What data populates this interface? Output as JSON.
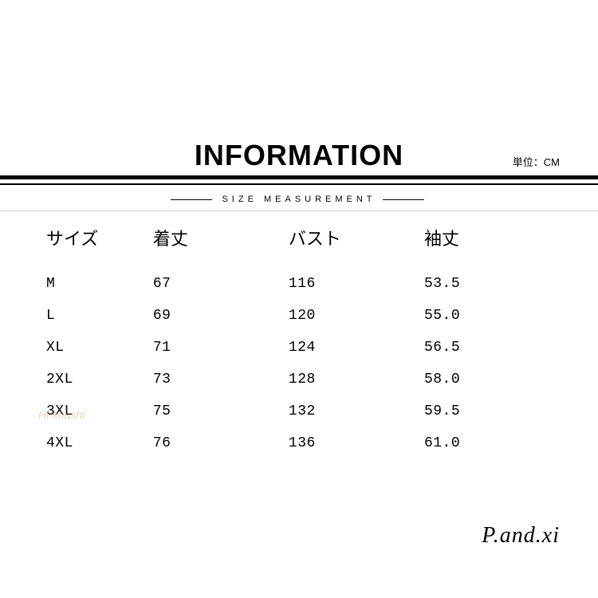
{
  "header": {
    "title": "INFORMATION",
    "unit_label": "単位：CM",
    "subtitle": "SIZE MEASUREMENT"
  },
  "table": {
    "columns": [
      "サイズ",
      "着丈",
      "バスト",
      "袖丈"
    ],
    "rows": [
      [
        "M",
        "67",
        "116",
        "53.5"
      ],
      [
        "L",
        "69",
        "120",
        "55.0"
      ],
      [
        "XL",
        "71",
        "124",
        "56.5"
      ],
      [
        "2XL",
        "73",
        "128",
        "58.0"
      ],
      [
        "3XL",
        "75",
        "132",
        "59.5"
      ],
      [
        "4XL",
        "76",
        "136",
        "61.0"
      ]
    ],
    "column_widths": [
      "22%",
      "26%",
      "26%",
      "26%"
    ],
    "header_fontsize": 22,
    "cell_fontsize": 18,
    "text_color": "#000000"
  },
  "watermark": {
    "text": "Hi-koashi",
    "color": "#d4a574"
  },
  "brand": {
    "text": "P.and.xi",
    "color": "#000000",
    "fontsize": 28
  },
  "colors": {
    "background": "#ffffff",
    "text": "#000000",
    "line_thick": "#000000",
    "line_thin": "#cccccc"
  }
}
